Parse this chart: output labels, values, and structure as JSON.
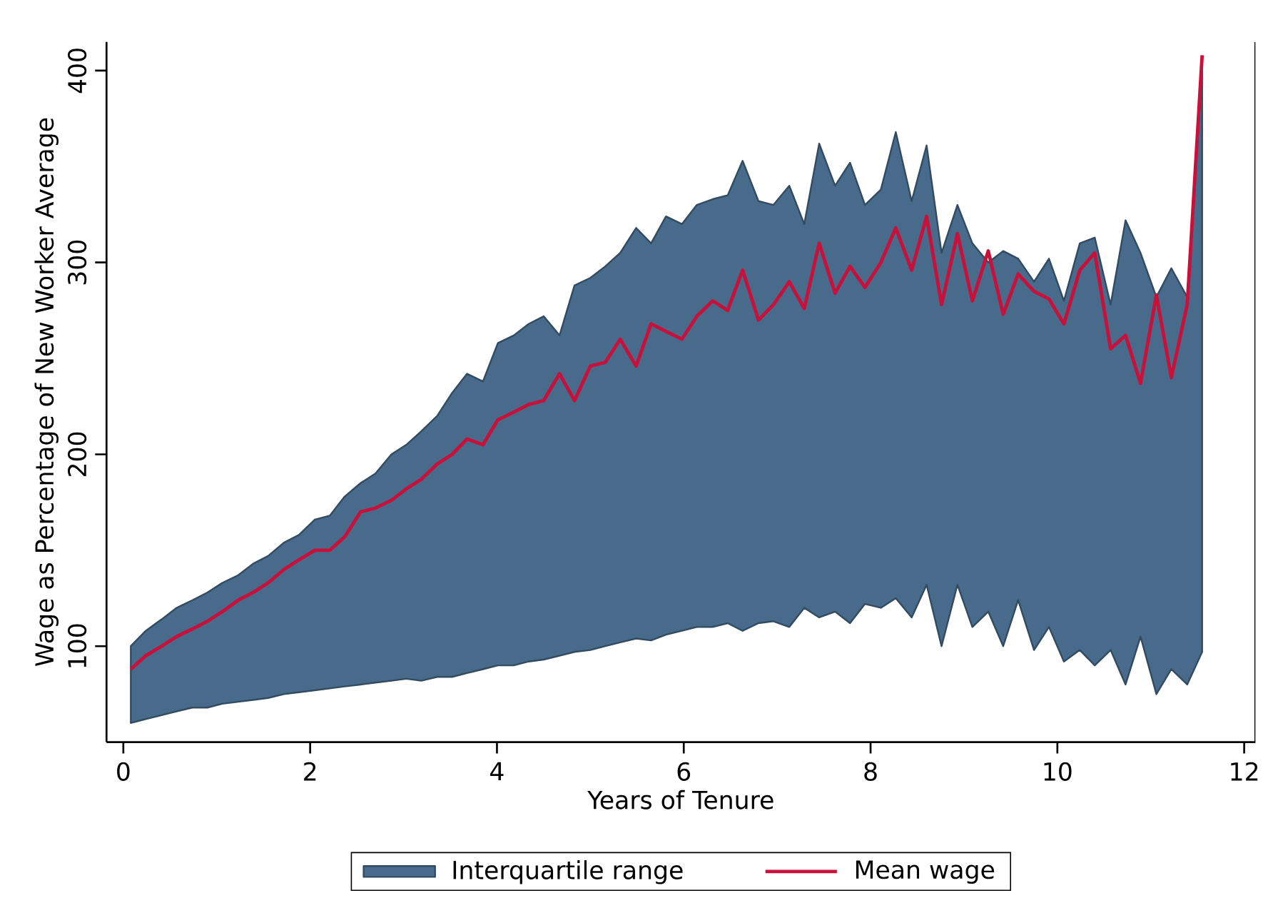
{
  "chart_data": {
    "type": "line",
    "xlabel": "Years of Tenure",
    "ylabel": "Wage as Percentage of New Worker Average",
    "xlim": [
      -0.18,
      12.12
    ],
    "ylim": [
      50,
      415
    ],
    "xticks": [
      0,
      2,
      4,
      6,
      8,
      10,
      12
    ],
    "yticks": [
      100,
      200,
      300,
      400
    ],
    "grid": false,
    "legend": "bottom",
    "marker": "none",
    "x": [
      0.08,
      0.24,
      0.41,
      0.57,
      0.74,
      0.9,
      1.06,
      1.23,
      1.39,
      1.55,
      1.72,
      1.88,
      2.05,
      2.21,
      2.37,
      2.54,
      2.7,
      2.87,
      3.03,
      3.19,
      3.36,
      3.52,
      3.68,
      3.85,
      4.01,
      4.18,
      4.34,
      4.5,
      4.67,
      4.83,
      5.0,
      5.16,
      5.32,
      5.49,
      5.65,
      5.81,
      5.98,
      6.14,
      6.31,
      6.47,
      6.63,
      6.8,
      6.96,
      7.13,
      7.29,
      7.45,
      7.62,
      7.78,
      7.94,
      8.11,
      8.27,
      8.44,
      8.6,
      8.76,
      8.93,
      9.09,
      9.26,
      9.42,
      9.58,
      9.75,
      9.91,
      10.07,
      10.24,
      10.4,
      10.57,
      10.73,
      10.89,
      11.06,
      11.22,
      11.39,
      11.55
    ],
    "series": [
      {
        "name": "Interquartile range",
        "color": "#486b8b",
        "values": [
          null,
          null,
          null,
          null,
          null,
          null,
          null,
          null,
          null,
          null,
          null,
          null,
          null,
          null,
          null,
          null,
          null,
          null,
          null,
          null,
          null,
          null,
          null,
          null,
          null,
          null,
          null,
          null,
          null,
          null,
          null,
          null,
          null,
          null,
          null,
          null,
          null,
          null,
          null,
          null,
          null,
          null,
          null,
          null,
          null,
          null,
          null,
          null,
          null,
          null,
          null,
          null,
          null,
          null,
          null,
          null,
          null,
          null,
          null,
          null,
          null,
          null,
          null,
          null,
          null,
          null,
          null,
          null,
          null,
          null,
          null
        ],
        "lower": [
          60,
          62,
          64,
          66,
          68,
          68,
          70,
          71,
          72,
          73,
          75,
          76,
          77,
          78,
          79,
          80,
          81,
          82,
          83,
          82,
          84,
          84,
          86,
          88,
          90,
          90,
          92,
          93,
          95,
          97,
          98,
          100,
          102,
          104,
          103,
          106,
          108,
          110,
          110,
          112,
          108,
          112,
          113,
          110,
          120,
          115,
          118,
          112,
          122,
          120,
          125,
          115,
          132,
          100,
          132,
          110,
          118,
          100,
          124,
          98,
          110,
          92,
          98,
          90,
          98,
          80,
          105,
          75,
          88,
          80,
          97
        ],
        "upper": [
          100,
          108,
          114,
          120,
          124,
          128,
          133,
          137,
          143,
          147,
          154,
          158,
          166,
          168,
          178,
          185,
          190,
          200,
          205,
          212,
          220,
          232,
          242,
          238,
          258,
          262,
          268,
          272,
          262,
          288,
          292,
          298,
          305,
          318,
          310,
          324,
          320,
          330,
          333,
          335,
          353,
          332,
          330,
          340,
          320,
          362,
          340,
          352,
          330,
          338,
          368,
          332,
          361,
          305,
          330,
          310,
          300,
          306,
          302,
          290,
          302,
          280,
          310,
          313,
          278,
          322,
          305,
          282,
          297,
          282,
          400
        ]
      },
      {
        "name": "Mean wage",
        "type": "line",
        "color": "#c8103a",
        "values": [
          88,
          95,
          100,
          105,
          109,
          113,
          118,
          124,
          128,
          133,
          140,
          145,
          150,
          150,
          157,
          170,
          172,
          176,
          182,
          187,
          195,
          200,
          208,
          205,
          218,
          222,
          226,
          228,
          242,
          228,
          246,
          248,
          260,
          246,
          268,
          264,
          260,
          272,
          280,
          275,
          296,
          270,
          278,
          290,
          276,
          310,
          284,
          298,
          287,
          300,
          318,
          296,
          324,
          278,
          315,
          280,
          306,
          273,
          294,
          285,
          281,
          268,
          296,
          305,
          255,
          262,
          237,
          283,
          240,
          278,
          408
        ]
      }
    ]
  }
}
